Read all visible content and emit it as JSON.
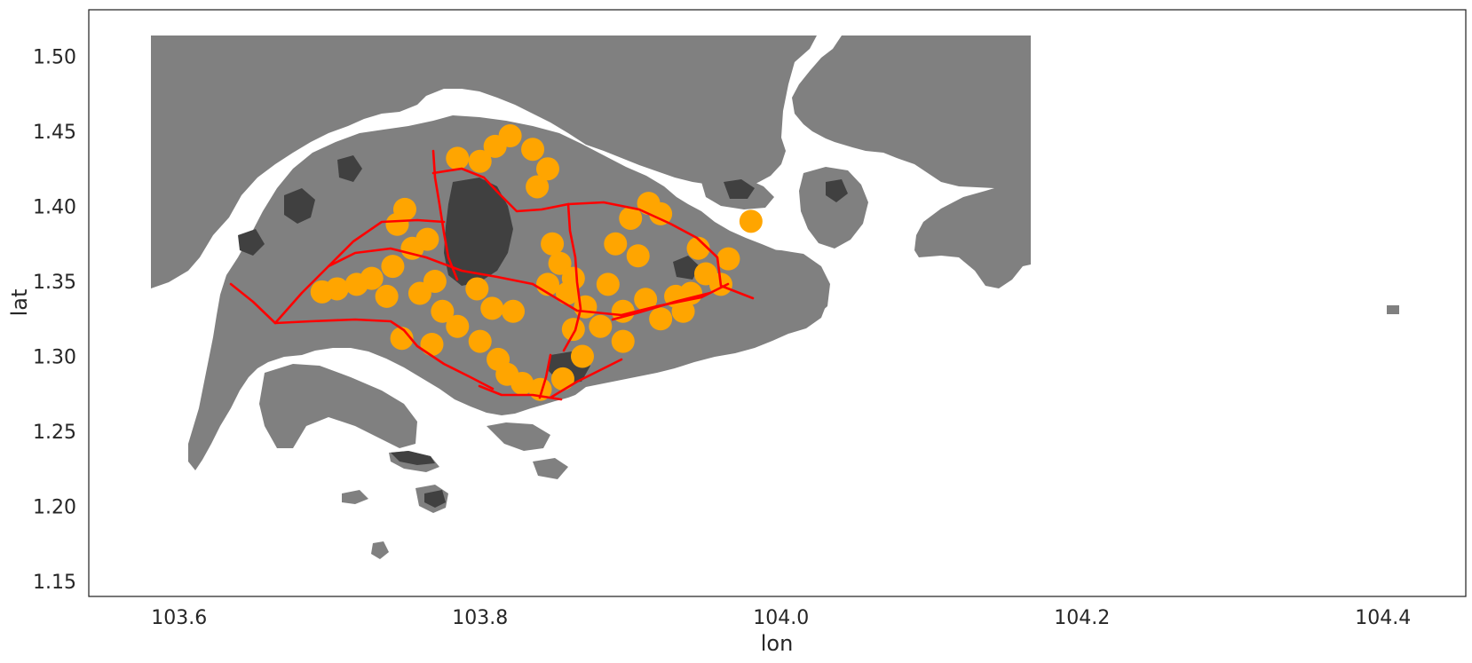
{
  "chart_data": {
    "type": "scatter",
    "title": "",
    "xlabel": "lon",
    "ylabel": "lat",
    "xlim": [
      103.54,
      104.455
    ],
    "ylim": [
      1.14,
      1.531
    ],
    "xticks": [
      103.6,
      103.8,
      104.0,
      104.2,
      104.4
    ],
    "xtick_labels": [
      "103.6",
      "103.8",
      "104.0",
      "104.2",
      "104.4"
    ],
    "yticks": [
      1.15,
      1.2,
      1.25,
      1.3,
      1.35,
      1.4,
      1.45,
      1.5
    ],
    "ytick_labels": [
      "1.15",
      "1.20",
      "1.25",
      "1.30",
      "1.35",
      "1.40",
      "1.45",
      "1.50"
    ],
    "grid": false,
    "layers": [
      {
        "name": "land",
        "type": "polygon",
        "color": "#808080"
      },
      {
        "name": "parks",
        "type": "polygon",
        "color": "#404040"
      },
      {
        "name": "expressways",
        "type": "line",
        "color": "#ff0000"
      },
      {
        "name": "points",
        "type": "scatter",
        "color": "#ffa500"
      }
    ],
    "points": [
      [
        103.82,
        1.447
      ],
      [
        103.835,
        1.438
      ],
      [
        103.8,
        1.43
      ],
      [
        103.81,
        1.44
      ],
      [
        103.785,
        1.432
      ],
      [
        103.845,
        1.425
      ],
      [
        103.838,
        1.413
      ],
      [
        103.75,
        1.398
      ],
      [
        103.745,
        1.388
      ],
      [
        103.755,
        1.372
      ],
      [
        103.765,
        1.378
      ],
      [
        103.742,
        1.36
      ],
      [
        103.728,
        1.352
      ],
      [
        103.718,
        1.348
      ],
      [
        103.705,
        1.345
      ],
      [
        103.695,
        1.343
      ],
      [
        103.738,
        1.34
      ],
      [
        103.76,
        1.342
      ],
      [
        103.77,
        1.35
      ],
      [
        103.775,
        1.33
      ],
      [
        103.748,
        1.312
      ],
      [
        103.768,
        1.308
      ],
      [
        103.785,
        1.32
      ],
      [
        103.8,
        1.31
      ],
      [
        103.812,
        1.298
      ],
      [
        103.818,
        1.288
      ],
      [
        103.828,
        1.282
      ],
      [
        103.84,
        1.278
      ],
      [
        103.855,
        1.285
      ],
      [
        103.868,
        1.3
      ],
      [
        103.862,
        1.318
      ],
      [
        103.87,
        1.333
      ],
      [
        103.858,
        1.342
      ],
      [
        103.845,
        1.348
      ],
      [
        103.853,
        1.362
      ],
      [
        103.848,
        1.375
      ],
      [
        103.862,
        1.352
      ],
      [
        103.885,
        1.348
      ],
      [
        103.89,
        1.375
      ],
      [
        103.9,
        1.392
      ],
      [
        103.912,
        1.402
      ],
      [
        103.905,
        1.367
      ],
      [
        103.92,
        1.395
      ],
      [
        103.93,
        1.34
      ],
      [
        103.91,
        1.338
      ],
      [
        103.895,
        1.33
      ],
      [
        103.88,
        1.32
      ],
      [
        103.895,
        1.31
      ],
      [
        103.92,
        1.325
      ],
      [
        103.935,
        1.33
      ],
      [
        103.94,
        1.342
      ],
      [
        103.95,
        1.355
      ],
      [
        103.96,
        1.348
      ],
      [
        103.965,
        1.365
      ],
      [
        103.945,
        1.372
      ],
      [
        103.98,
        1.39
      ],
      [
        103.822,
        1.33
      ],
      [
        103.798,
        1.345
      ],
      [
        103.808,
        1.332
      ]
    ]
  }
}
